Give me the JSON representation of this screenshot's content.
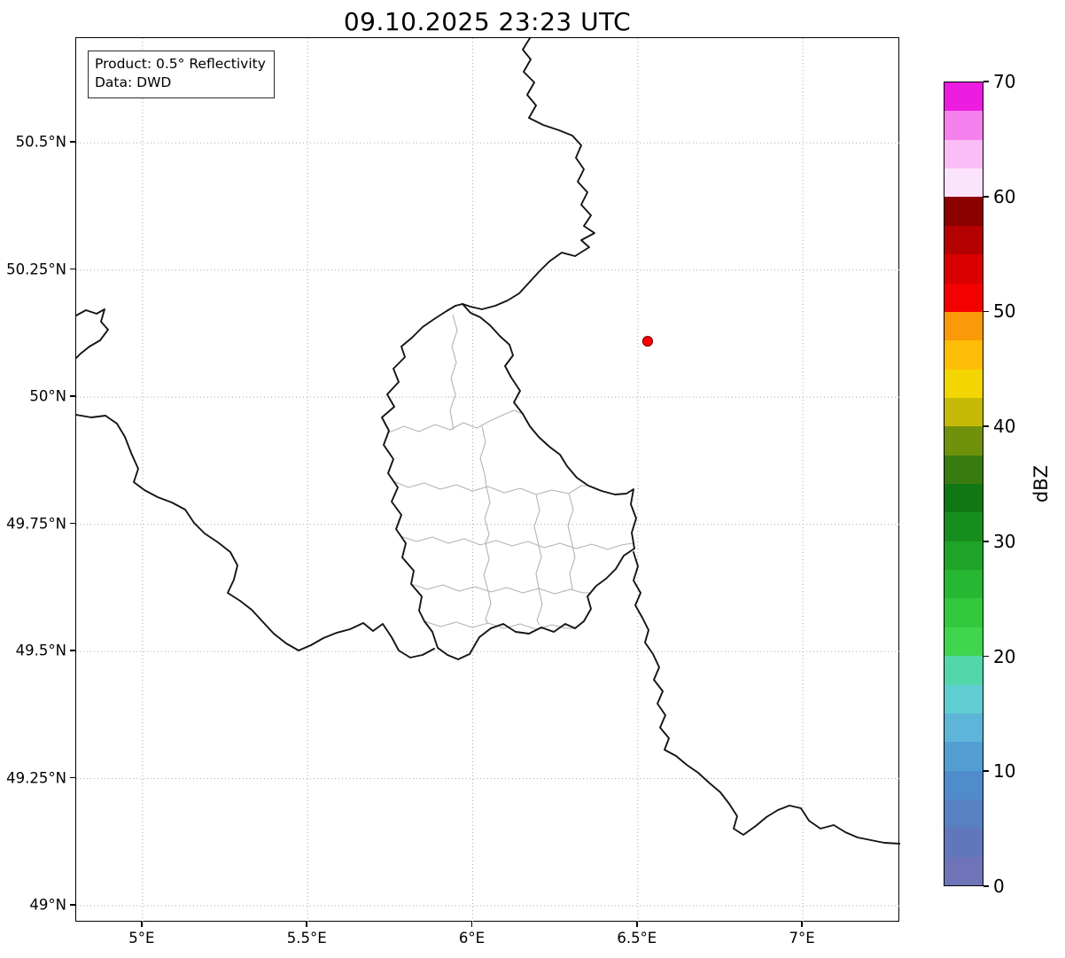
{
  "title": "09.10.2025 23:23 UTC",
  "info_box": {
    "product": "Product: 0.5° Reflectivity",
    "source": "Data: DWD"
  },
  "axes": {
    "x": {
      "range": [
        4.799,
        7.295
      ],
      "ticks": [
        {
          "value": 5.0,
          "label": "5°E"
        },
        {
          "value": 5.5,
          "label": "5.5°E"
        },
        {
          "value": 6.0,
          "label": "6°E"
        },
        {
          "value": 6.5,
          "label": "6.5°E"
        },
        {
          "value": 7.0,
          "label": "7°E"
        }
      ]
    },
    "y": {
      "range": [
        48.967,
        50.706
      ],
      "ticks": [
        {
          "value": 50.5,
          "label": "50.5°N"
        },
        {
          "value": 50.25,
          "label": "50.25°N"
        },
        {
          "value": 50.0,
          "label": "50°N"
        },
        {
          "value": 49.75,
          "label": "49.75°N"
        },
        {
          "value": 49.5,
          "label": "49.5°N"
        },
        {
          "value": 49.25,
          "label": "49.25°N"
        },
        {
          "value": 49.0,
          "label": "49°N"
        }
      ]
    }
  },
  "marker": {
    "lon": 6.53,
    "lat": 50.11,
    "fill": "#ff0000",
    "edge": "#7f0000"
  },
  "colorbar": {
    "label": "dBZ",
    "min": 0,
    "max": 70,
    "ticks": [
      0,
      10,
      20,
      30,
      40,
      50,
      60,
      70
    ],
    "segments": [
      {
        "range": [
          0,
          2.5
        ],
        "color": "#6f74b8"
      },
      {
        "range": [
          2.5,
          5
        ],
        "color": "#6277bb"
      },
      {
        "range": [
          5,
          7.5
        ],
        "color": "#5781c2"
      },
      {
        "range": [
          7.5,
          10
        ],
        "color": "#508ccb"
      },
      {
        "range": [
          10,
          12.5
        ],
        "color": "#539fd4"
      },
      {
        "range": [
          12.5,
          15
        ],
        "color": "#5db6da"
      },
      {
        "range": [
          15,
          17.5
        ],
        "color": "#60cdd2"
      },
      {
        "range": [
          17.5,
          20
        ],
        "color": "#54d6ab"
      },
      {
        "range": [
          20,
          22.5
        ],
        "color": "#40d54d"
      },
      {
        "range": [
          22.5,
          25
        ],
        "color": "#32c93d"
      },
      {
        "range": [
          25,
          27.5
        ],
        "color": "#28b733"
      },
      {
        "range": [
          27.5,
          30
        ],
        "color": "#1fa329"
      },
      {
        "range": [
          30,
          32.5
        ],
        "color": "#178d1e"
      },
      {
        "range": [
          32.5,
          35
        ],
        "color": "#0f7714"
      },
      {
        "range": [
          35,
          37.5
        ],
        "color": "#397c10"
      },
      {
        "range": [
          37.5,
          40
        ],
        "color": "#6f910c"
      },
      {
        "range": [
          40,
          42.5
        ],
        "color": "#c6ba08"
      },
      {
        "range": [
          42.5,
          45
        ],
        "color": "#f3d503"
      },
      {
        "range": [
          45,
          47.5
        ],
        "color": "#fdbd06"
      },
      {
        "range": [
          47.5,
          50
        ],
        "color": "#fb9a09"
      },
      {
        "range": [
          50,
          52.5
        ],
        "color": "#f50000"
      },
      {
        "range": [
          52.5,
          55
        ],
        "color": "#d80000"
      },
      {
        "range": [
          55,
          57.5
        ],
        "color": "#b40000"
      },
      {
        "range": [
          57.5,
          60
        ],
        "color": "#8d0000"
      },
      {
        "range": [
          60,
          62.5
        ],
        "color": "#fce3fc"
      },
      {
        "range": [
          62.5,
          65
        ],
        "color": "#fabdf7"
      },
      {
        "range": [
          65,
          67.5
        ],
        "color": "#f581ee"
      },
      {
        "range": [
          67.5,
          70
        ],
        "color": "#ee1be0"
      }
    ]
  },
  "map": {
    "border_color": "#141414",
    "admin_color": "#b3b3b3",
    "grid_color": "#b0b0b0",
    "background": "#ffffff"
  }
}
